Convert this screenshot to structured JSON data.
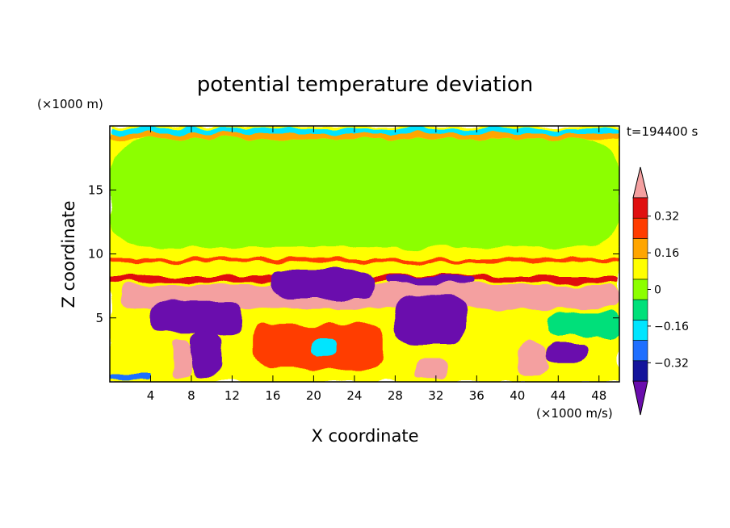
{
  "chart_data": {
    "type": "heatmap",
    "title": "potential temperature deviation",
    "time_label": "t=194400 s",
    "xlabel": "X coordinate",
    "ylabel": "Z coordinate",
    "x_unit": "(×1000 m/s)",
    "y_unit": "(×1000 m)",
    "xlim": [
      0,
      50
    ],
    "ylim": [
      0,
      20
    ],
    "x_ticks": [
      4,
      8,
      12,
      16,
      20,
      24,
      28,
      32,
      36,
      40,
      44,
      48
    ],
    "y_ticks": [
      5,
      10,
      15
    ],
    "colorbar": {
      "levels": [
        -0.4,
        -0.32,
        -0.24,
        -0.16,
        -0.08,
        0,
        0.08,
        0.16,
        0.24,
        0.32,
        0.4
      ],
      "labeled_values": [
        "0.32",
        "0.16",
        "0",
        "−0.16",
        "−0.32"
      ],
      "colors": [
        "#6a0dad",
        "#14149b",
        "#1f6fff",
        "#00e5ff",
        "#00e07a",
        "#8cff00",
        "#ffff00",
        "#ffa500",
        "#ff3c00",
        "#e01010",
        "#f4a0a0"
      ],
      "extend": "both"
    },
    "regions": [
      {
        "level": 0.04,
        "x": [
          0,
          50
        ],
        "y": [
          0,
          20
        ]
      },
      {
        "level": -0.04,
        "x": [
          0,
          50
        ],
        "y": [
          10.5,
          19
        ]
      },
      {
        "level": 0.12,
        "x": [
          0,
          50
        ],
        "y": [
          19,
          19.4
        ]
      },
      {
        "level": -0.24,
        "x": [
          0,
          50
        ],
        "y": [
          19.4,
          19.8
        ]
      },
      {
        "level": 0.2,
        "x": [
          0,
          50
        ],
        "y": [
          9.3,
          9.6
        ]
      },
      {
        "level": 0.28,
        "x": [
          0,
          50
        ],
        "y": [
          7.8,
          8.3
        ]
      },
      {
        "level": 0.44,
        "x": [
          1,
          50
        ],
        "y": [
          5.8,
          7.6
        ]
      },
      {
        "level": -0.44,
        "x": [
          16,
          26
        ],
        "y": [
          6.5,
          8.8
        ]
      },
      {
        "level": -0.44,
        "x": [
          27,
          36
        ],
        "y": [
          7.6,
          8.2
        ]
      },
      {
        "level": -0.44,
        "x": [
          4,
          13
        ],
        "y": [
          3.8,
          6.3
        ]
      },
      {
        "level": -0.44,
        "x": [
          28,
          35
        ],
        "y": [
          3,
          6.8
        ]
      },
      {
        "level": -0.44,
        "x": [
          8,
          11
        ],
        "y": [
          0.5,
          4
        ]
      },
      {
        "level": -0.44,
        "x": [
          43,
          47
        ],
        "y": [
          1.5,
          3
        ]
      },
      {
        "level": 0.36,
        "x": [
          6,
          8
        ],
        "y": [
          0.3,
          3.2
        ]
      },
      {
        "level": 0.36,
        "x": [
          30,
          33
        ],
        "y": [
          0.3,
          1.8
        ]
      },
      {
        "level": 0.36,
        "x": [
          40,
          43
        ],
        "y": [
          0.5,
          3
        ]
      },
      {
        "level": 0.2,
        "x": [
          14,
          27
        ],
        "y": [
          1,
          4.5
        ]
      },
      {
        "level": -0.12,
        "x": [
          43,
          50
        ],
        "y": [
          3.5,
          5.5
        ]
      },
      {
        "level": -0.2,
        "x": [
          20,
          22
        ],
        "y": [
          2,
          3.5
        ]
      },
      {
        "level": -0.28,
        "x": [
          0,
          4
        ],
        "y": [
          0.2,
          0.6
        ]
      }
    ]
  }
}
